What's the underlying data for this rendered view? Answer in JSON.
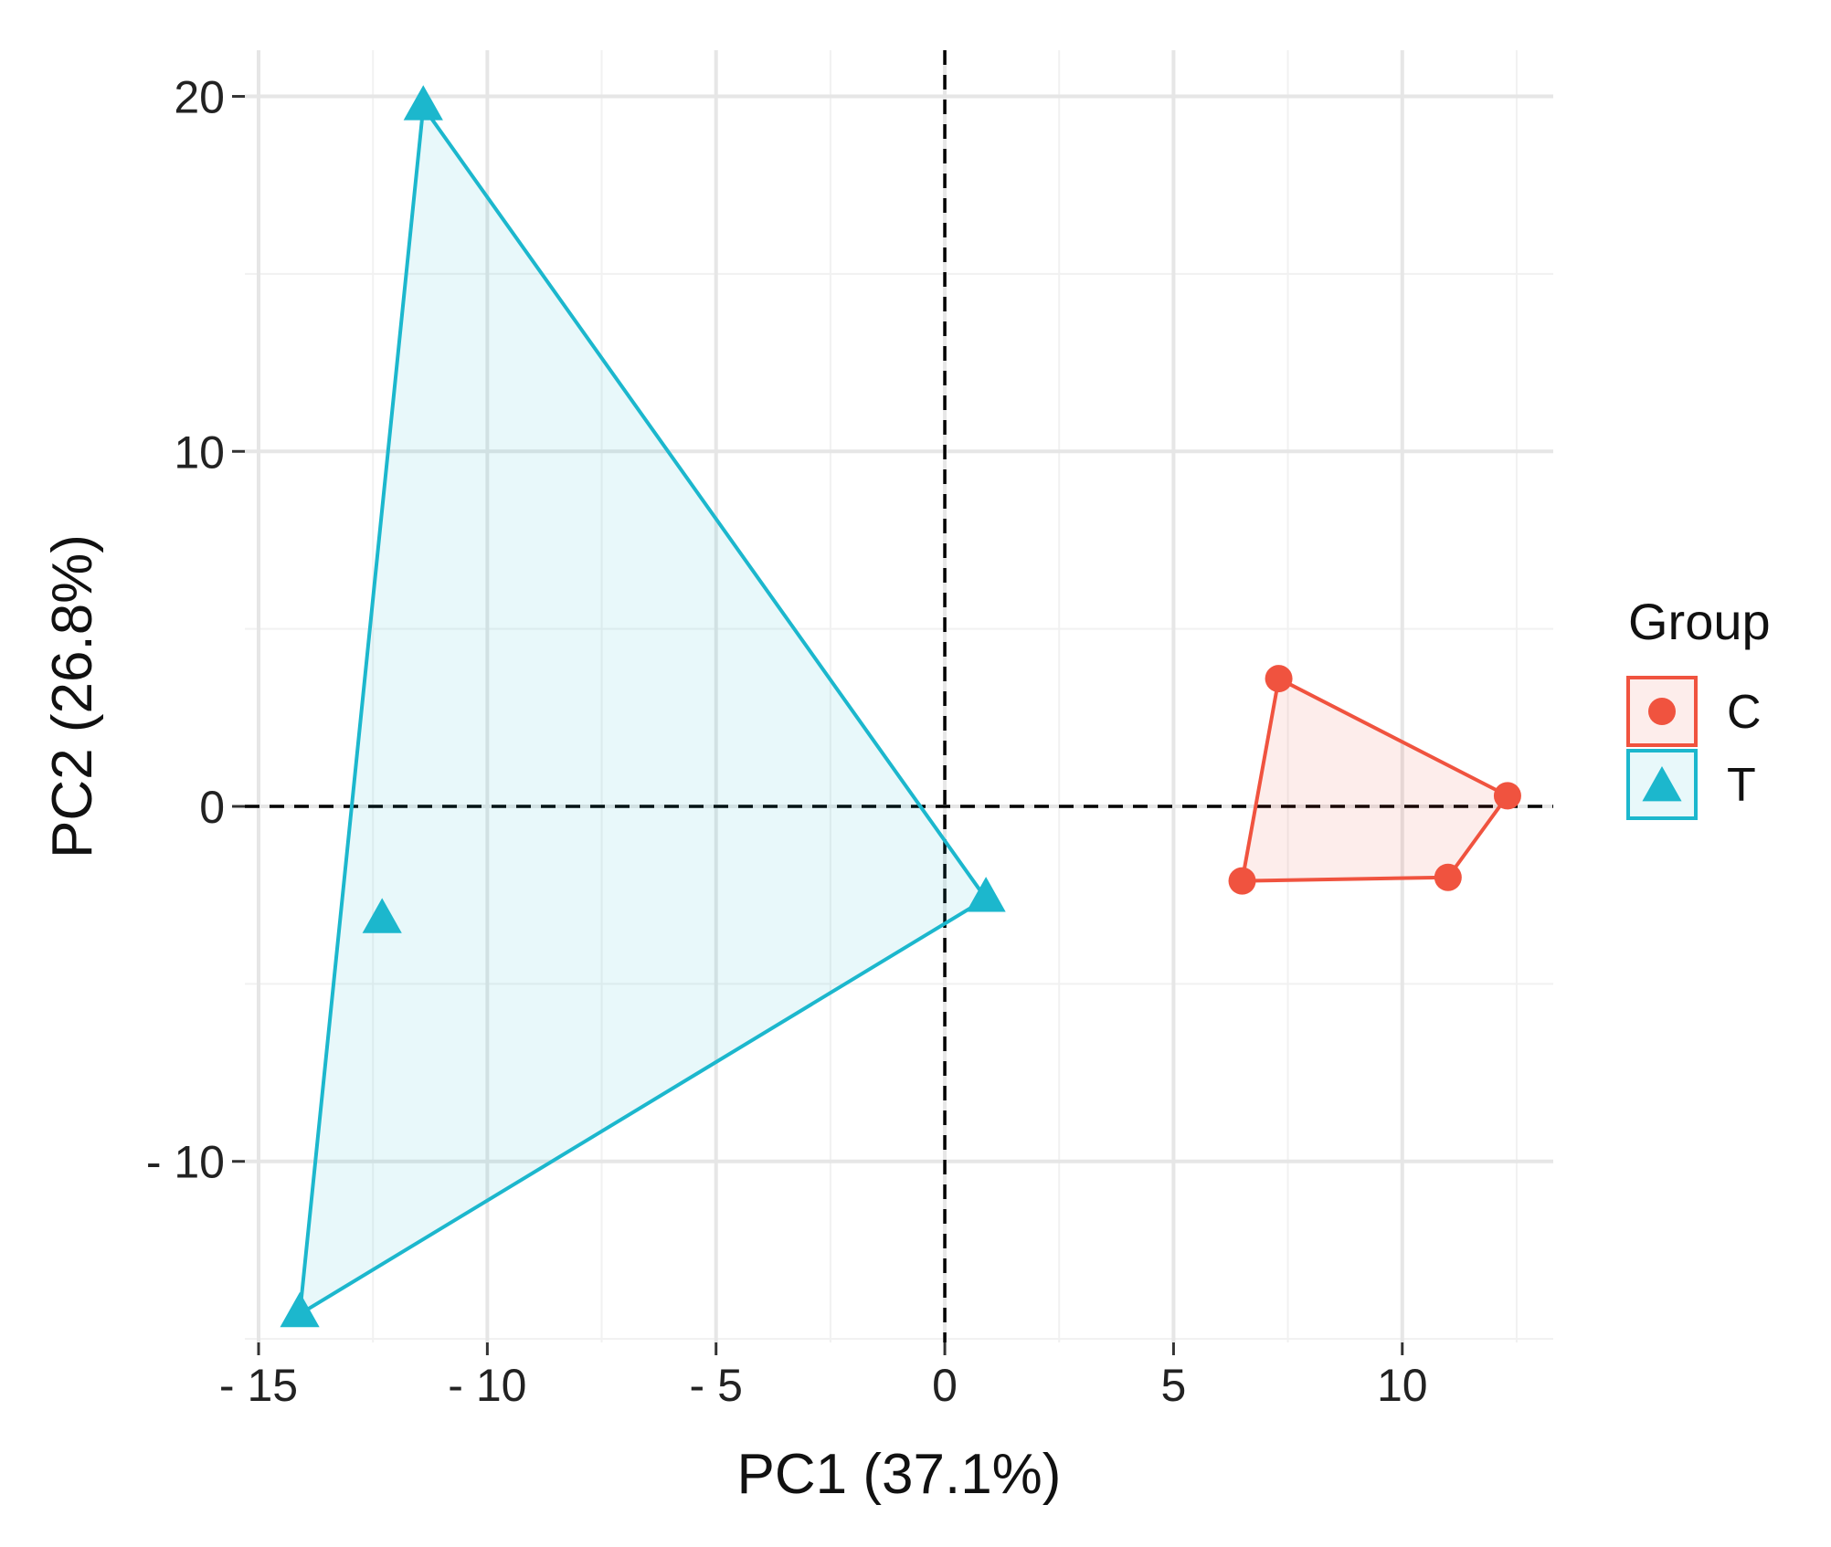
{
  "chart_data": {
    "type": "scatter",
    "title": "",
    "xlabel": "PC1 (37.1%)",
    "ylabel": "PC2 (26.8%)",
    "xlim": [
      -15.3,
      13.3
    ],
    "ylim": [
      -15.1,
      21.3
    ],
    "x_ticks": [
      -15,
      -10,
      -5,
      0,
      5,
      10
    ],
    "x_tick_labels": [
      "- 15",
      "- 10",
      "- 5",
      "0",
      "5",
      "10"
    ],
    "y_ticks": [
      -10,
      0,
      10,
      20
    ],
    "y_tick_labels": [
      "- 10",
      "0",
      "10",
      "20"
    ],
    "grid": true,
    "reference_lines": {
      "x": 0,
      "y": 0,
      "style": "dashed"
    },
    "legend": {
      "title": "Group",
      "position": "right"
    },
    "series": [
      {
        "name": "C",
        "color": "#F0533F",
        "marker": "circle",
        "hull": true,
        "points": [
          {
            "x": 7.3,
            "y": 3.6
          },
          {
            "x": 12.3,
            "y": 0.3
          },
          {
            "x": 11.0,
            "y": -2.0
          },
          {
            "x": 6.5,
            "y": -2.1
          }
        ]
      },
      {
        "name": "T",
        "color": "#1CB7CD",
        "marker": "triangle",
        "hull": true,
        "points": [
          {
            "x": -11.4,
            "y": 19.7
          },
          {
            "x": 0.9,
            "y": -2.6
          },
          {
            "x": -14.1,
            "y": -14.3
          },
          {
            "x": -12.3,
            "y": -3.2
          }
        ]
      }
    ]
  }
}
